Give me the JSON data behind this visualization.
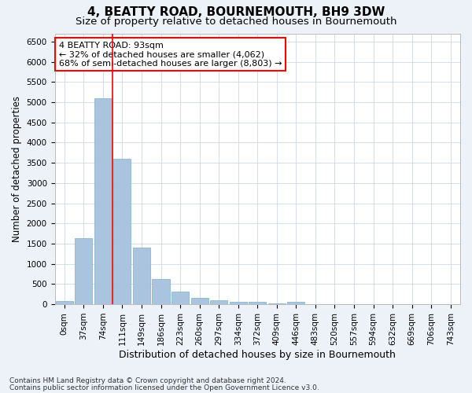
{
  "title": "4, BEATTY ROAD, BOURNEMOUTH, BH9 3DW",
  "subtitle": "Size of property relative to detached houses in Bournemouth",
  "xlabel": "Distribution of detached houses by size in Bournemouth",
  "ylabel": "Number of detached properties",
  "footer_line1": "Contains HM Land Registry data © Crown copyright and database right 2024.",
  "footer_line2": "Contains public sector information licensed under the Open Government Licence v3.0.",
  "categories": [
    "0sqm",
    "37sqm",
    "74sqm",
    "111sqm",
    "149sqm",
    "186sqm",
    "223sqm",
    "260sqm",
    "297sqm",
    "334sqm",
    "372sqm",
    "409sqm",
    "446sqm",
    "483sqm",
    "520sqm",
    "557sqm",
    "594sqm",
    "632sqm",
    "669sqm",
    "706sqm",
    "743sqm"
  ],
  "values": [
    75,
    1640,
    5100,
    3600,
    1400,
    620,
    310,
    155,
    100,
    60,
    55,
    30,
    55,
    0,
    0,
    0,
    0,
    0,
    0,
    0,
    0
  ],
  "bar_color": "#aac4e0",
  "bar_edge_color": "#7aafd0",
  "vline_color": "red",
  "vline_x": 2.5,
  "annotation_text": "4 BEATTY ROAD: 93sqm\n← 32% of detached houses are smaller (4,062)\n68% of semi-detached houses are larger (8,803) →",
  "annotation_box_color": "white",
  "annotation_box_edge_color": "red",
  "ylim": [
    0,
    6700
  ],
  "yticks": [
    0,
    500,
    1000,
    1500,
    2000,
    2500,
    3000,
    3500,
    4000,
    4500,
    5000,
    5500,
    6000,
    6500
  ],
  "bg_color": "#edf2f9",
  "plot_bg_color": "white",
  "grid_color": "#ccd8ea",
  "title_fontsize": 11,
  "subtitle_fontsize": 9.5,
  "xlabel_fontsize": 9,
  "ylabel_fontsize": 8.5,
  "tick_fontsize": 7.5,
  "annotation_fontsize": 8,
  "footer_fontsize": 6.5
}
